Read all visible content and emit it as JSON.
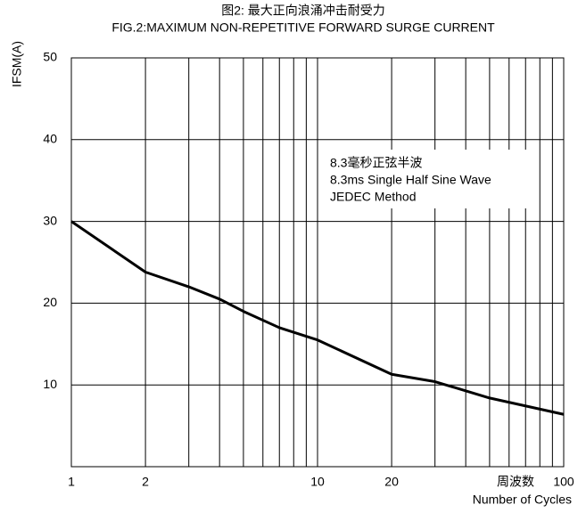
{
  "chart_data": {
    "type": "line",
    "title": "图2: 最大正向浪涌冲击耐受力",
    "subtitle": "FIG.2:MAXIMUM NON-REPETITIVE FORWARD SURGE CURRENT",
    "y_label": "IFSM(A)",
    "x_label": "Number of Cycles",
    "x_label_cn": "周波数",
    "annotations": [
      "8.3毫秒正弦半波",
      "8.3ms Single Half Sine Wave",
      "JEDEC Method"
    ],
    "x_log": true,
    "grid": true,
    "xlim": [
      1,
      100
    ],
    "ylim": [
      0,
      50
    ],
    "xticks": [
      1,
      2,
      10,
      20,
      100
    ],
    "xminor": [
      3,
      4,
      5,
      6,
      7,
      8,
      9,
      30,
      40,
      50,
      60,
      70,
      80,
      90
    ],
    "yticks": [
      10,
      20,
      30,
      40,
      50
    ],
    "series": [
      {
        "color": "#000000",
        "x": [
          1,
          2,
          3,
          4,
          5,
          7,
          10,
          20,
          30,
          50,
          100
        ],
        "values": [
          30,
          23.8,
          22,
          20.5,
          19,
          17,
          15.5,
          11.3,
          10.4,
          8.4,
          6.4
        ]
      }
    ]
  }
}
